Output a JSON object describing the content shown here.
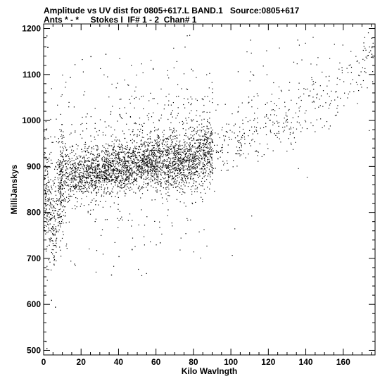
{
  "header": {
    "line1": "Amplitude vs UV dist for 0805+617.L BAND.1   Source:0805+617",
    "line2": "Ants * - *     Stokes I  IF# 1 - 2  Chan# 1"
  },
  "chart_data": {
    "type": "scatter",
    "xlabel": "Kilo Wavlngth",
    "ylabel": "MilliJanskys",
    "xlim": [
      0,
      177
    ],
    "ylim": [
      490,
      1210
    ],
    "xticks": [
      0,
      20,
      40,
      60,
      80,
      100,
      120,
      140,
      160
    ],
    "yticks": [
      500,
      600,
      700,
      800,
      900,
      1000,
      1100,
      1200
    ],
    "series": [
      {
        "point_count": 4200,
        "trend": [
          {
            "x": 2,
            "y": 820
          },
          {
            "x": 5,
            "y": 780
          },
          {
            "x": 10,
            "y": 870
          },
          {
            "x": 20,
            "y": 880
          },
          {
            "x": 30,
            "y": 890
          },
          {
            "x": 40,
            "y": 895
          },
          {
            "x": 50,
            "y": 905
          },
          {
            "x": 60,
            "y": 910
          },
          {
            "x": 70,
            "y": 915
          },
          {
            "x": 80,
            "y": 920
          },
          {
            "x": 90,
            "y": 935
          },
          {
            "x": 100,
            "y": 950
          },
          {
            "x": 110,
            "y": 975
          },
          {
            "x": 120,
            "y": 990
          },
          {
            "x": 130,
            "y": 1005
          },
          {
            "x": 140,
            "y": 1025
          },
          {
            "x": 150,
            "y": 1050
          },
          {
            "x": 160,
            "y": 1085
          },
          {
            "x": 167,
            "y": 1110
          },
          {
            "x": 175,
            "y": 1150
          }
        ],
        "notable_points": [
          {
            "x": 1.5,
            "y": 1185
          },
          {
            "x": 2.0,
            "y": 1160
          },
          {
            "x": 1.0,
            "y": 520
          },
          {
            "x": 1.5,
            "y": 505
          },
          {
            "x": 4,
            "y": 610
          },
          {
            "x": 6,
            "y": 595
          },
          {
            "x": 14,
            "y": 1095
          },
          {
            "x": 25,
            "y": 1140
          },
          {
            "x": 33,
            "y": 1145
          },
          {
            "x": 36,
            "y": 665
          },
          {
            "x": 40,
            "y": 705
          },
          {
            "x": 47,
            "y": 720
          },
          {
            "x": 62,
            "y": 735
          },
          {
            "x": 175,
            "y": 1180
          },
          {
            "x": 175,
            "y": 1145
          }
        ]
      }
    ]
  }
}
